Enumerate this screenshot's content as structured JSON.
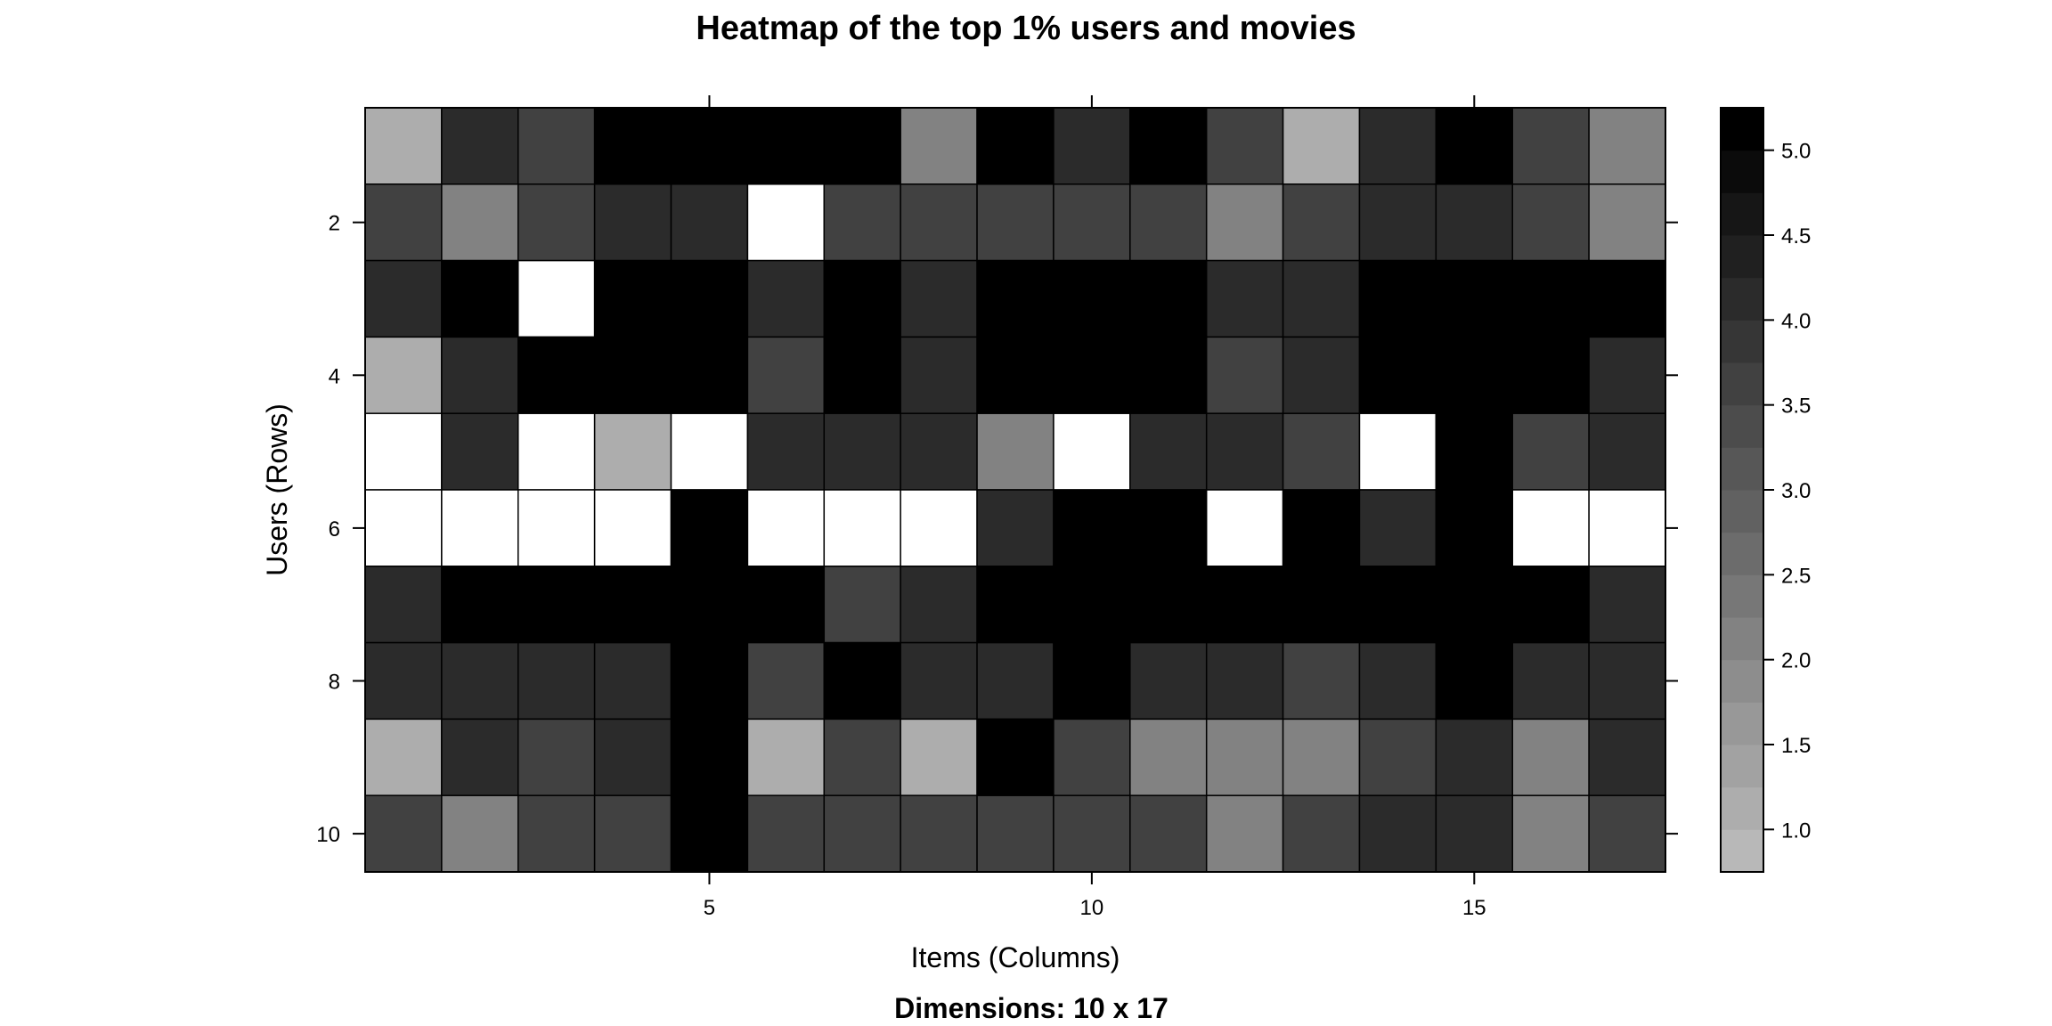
{
  "chart_data": {
    "type": "heatmap",
    "title": "Heatmap of the top 1% users and movies",
    "subtitle": "Dimensions: 10 x 17",
    "xlabel": "Items (Columns)",
    "ylabel": "Users (Rows)",
    "rows": 10,
    "columns": 17,
    "x_ticks": [
      5,
      10,
      15
    ],
    "y_ticks": [
      2,
      4,
      6,
      8,
      10
    ],
    "colorbar": {
      "range": [
        0.75,
        5.25
      ],
      "ticks": [
        1.0,
        1.5,
        2.0,
        2.5,
        3.0,
        3.5,
        4.0,
        4.5,
        5.0
      ],
      "tick_labels": [
        "1.0",
        "1.5",
        "2.0",
        "2.5",
        "3.0",
        "3.5",
        "4.0",
        "4.5",
        "5.0"
      ],
      "low_color": "#b8b8b8",
      "high_color": "#000000",
      "missing_color": "#ffffff"
    },
    "values": [
      [
        1.0,
        4.0,
        3.5,
        5.0,
        5.0,
        5.0,
        5.0,
        2.0,
        5.0,
        4.0,
        5.0,
        3.5,
        1.0,
        4.0,
        5.0,
        3.5,
        2.0
      ],
      [
        3.5,
        2.0,
        3.5,
        4.0,
        4.0,
        null,
        3.5,
        3.5,
        3.5,
        3.5,
        3.5,
        2.0,
        3.5,
        4.0,
        4.0,
        3.5,
        2.0
      ],
      [
        4.0,
        5.0,
        null,
        5.0,
        5.0,
        4.0,
        5.0,
        4.0,
        5.0,
        5.0,
        5.0,
        4.0,
        4.0,
        5.0,
        5.0,
        5.0,
        5.0
      ],
      [
        1.0,
        4.0,
        5.0,
        5.0,
        5.0,
        3.5,
        5.0,
        4.0,
        5.0,
        5.0,
        5.0,
        3.5,
        4.0,
        5.0,
        5.0,
        5.0,
        4.0
      ],
      [
        null,
        4.0,
        null,
        1.0,
        null,
        4.0,
        4.0,
        4.0,
        2.0,
        null,
        4.0,
        4.0,
        3.5,
        null,
        5.0,
        3.5,
        4.0
      ],
      [
        null,
        null,
        null,
        null,
        5.0,
        null,
        null,
        null,
        4.0,
        5.0,
        5.0,
        null,
        5.0,
        4.0,
        5.0,
        null,
        null
      ],
      [
        4.0,
        5.0,
        5.0,
        5.0,
        5.0,
        5.0,
        3.5,
        4.0,
        5.0,
        5.0,
        5.0,
        5.0,
        5.0,
        5.0,
        5.0,
        5.0,
        4.0
      ],
      [
        4.0,
        4.0,
        4.0,
        4.0,
        5.0,
        3.5,
        5.0,
        4.0,
        4.0,
        5.0,
        4.0,
        4.0,
        3.5,
        4.0,
        5.0,
        4.0,
        4.0
      ],
      [
        1.0,
        4.0,
        3.5,
        4.0,
        5.0,
        1.0,
        3.5,
        1.0,
        5.0,
        3.5,
        2.0,
        2.0,
        2.0,
        3.5,
        4.0,
        2.0,
        4.0
      ],
      [
        3.5,
        2.0,
        3.5,
        3.5,
        5.0,
        3.5,
        3.5,
        3.5,
        3.5,
        3.5,
        3.5,
        2.0,
        3.5,
        4.0,
        4.0,
        2.0,
        3.5
      ]
    ]
  }
}
